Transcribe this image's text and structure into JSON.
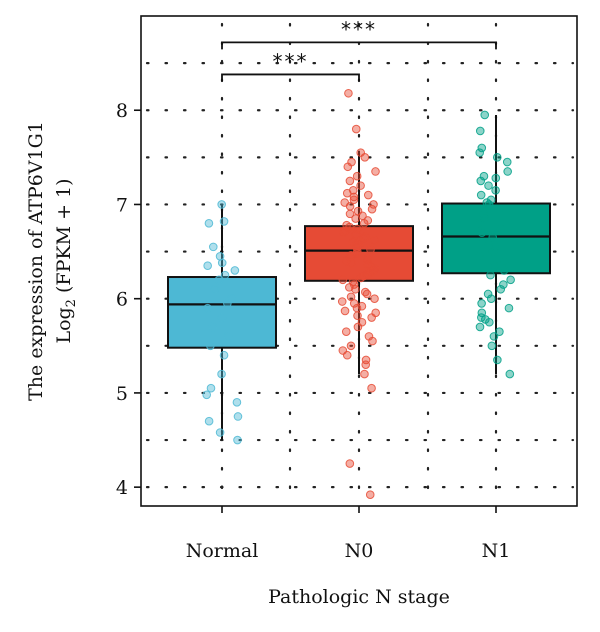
{
  "chart_data": {
    "type": "box",
    "xlabel": "Pathologic N stage",
    "ylabel_line1": "The expression of ATP6V1G1",
    "ylabel_line2_prefix": "Log",
    "ylabel_line2_sub": "2",
    "ylabel_line2_suffix": " (FPKM + 1)",
    "ylim": [
      3.8,
      9.0
    ],
    "yticks": [
      "4",
      "5",
      "6",
      "7",
      "8"
    ],
    "categories": [
      "Normal",
      "N0",
      "N1"
    ],
    "grid": "dotted",
    "colors": {
      "Normal": "#4db8d4",
      "N0": "#e64b35",
      "N1": "#00a087"
    },
    "boxes": [
      {
        "category": "Normal",
        "whisker_low": 4.5,
        "q1": 5.48,
        "median": 5.94,
        "q3": 6.23,
        "whisker_high": 7.0
      },
      {
        "category": "N0",
        "whisker_low": 5.2,
        "q1": 6.19,
        "median": 6.51,
        "q3": 6.77,
        "whisker_high": 7.57
      },
      {
        "category": "N1",
        "whisker_low": 5.2,
        "q1": 6.27,
        "median": 6.66,
        "q3": 7.01,
        "whisker_high": 7.95
      }
    ],
    "points": {
      "Normal": [
        7.0,
        6.82,
        6.8,
        6.55,
        6.45,
        6.38,
        6.35,
        6.3,
        6.25,
        6.2,
        6.1,
        6.0,
        5.95,
        5.9,
        5.8,
        5.7,
        5.6,
        5.5,
        5.4,
        5.2,
        5.05,
        4.98,
        4.9,
        4.75,
        4.7,
        4.58,
        4.5
      ],
      "N0": [
        8.18,
        7.8,
        7.55,
        7.5,
        7.45,
        7.4,
        7.35,
        7.3,
        7.25,
        7.2,
        7.15,
        7.12,
        7.1,
        7.08,
        7.05,
        7.02,
        7.0,
        6.98,
        6.95,
        6.93,
        6.9,
        6.88,
        6.85,
        6.83,
        6.8,
        6.78,
        6.76,
        6.74,
        6.72,
        6.7,
        6.68,
        6.66,
        6.64,
        6.62,
        6.6,
        6.58,
        6.56,
        6.54,
        6.52,
        6.5,
        6.48,
        6.46,
        6.44,
        6.42,
        6.4,
        6.38,
        6.36,
        6.34,
        6.32,
        6.3,
        6.28,
        6.26,
        6.24,
        6.22,
        6.2,
        6.18,
        6.15,
        6.12,
        6.1,
        6.07,
        6.05,
        6.02,
        6.0,
        5.97,
        5.95,
        5.92,
        5.9,
        5.87,
        5.85,
        5.82,
        5.8,
        5.75,
        5.7,
        5.65,
        5.6,
        5.55,
        5.5,
        5.45,
        5.4,
        5.35,
        5.3,
        5.2,
        5.05,
        4.25,
        3.92
      ],
      "N1": [
        7.95,
        7.78,
        7.6,
        7.55,
        7.5,
        7.45,
        7.35,
        7.3,
        7.28,
        7.25,
        7.2,
        7.15,
        7.1,
        7.05,
        7.02,
        7.0,
        6.95,
        6.9,
        6.85,
        6.8,
        6.75,
        6.7,
        6.65,
        6.6,
        6.55,
        6.5,
        6.45,
        6.4,
        6.35,
        6.3,
        6.25,
        6.2,
        6.15,
        6.1,
        6.05,
        6.0,
        5.95,
        5.9,
        5.85,
        5.8,
        5.78,
        5.75,
        5.7,
        5.65,
        5.6,
        5.5,
        5.35,
        5.2
      ]
    },
    "comparisons": [
      {
        "from": "Normal",
        "to": "N0",
        "label": "***",
        "y": 8.38
      },
      {
        "from": "Normal",
        "to": "N1",
        "label": "***",
        "y": 8.72
      }
    ]
  }
}
